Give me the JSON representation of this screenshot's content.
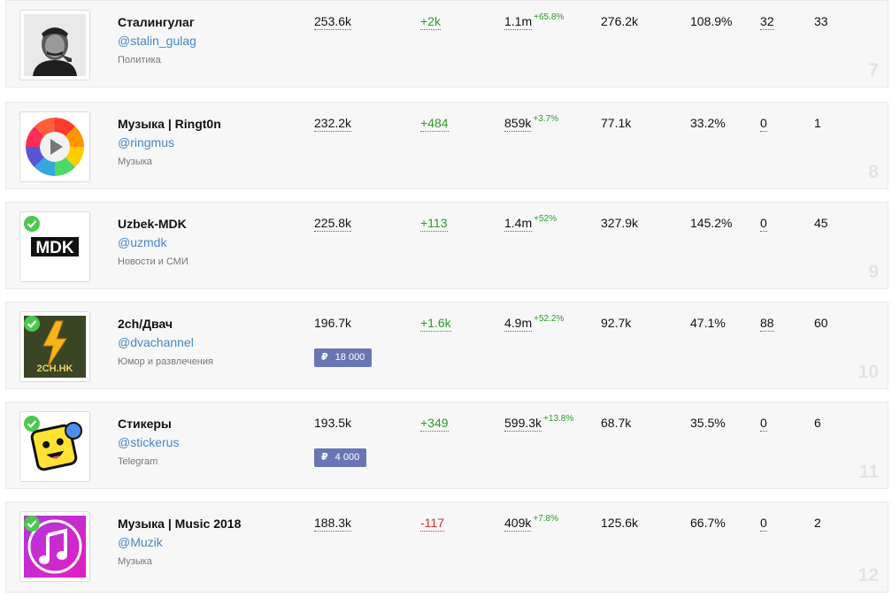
{
  "channels": [
    {
      "rank": "7",
      "name": "Сталингулаг",
      "handle": "@stalin_gulag",
      "category": "Политика",
      "subscribers": "253.6k",
      "growth": "+2k",
      "growth_negative": false,
      "reach": "1.1m",
      "reach_change": "+65.8%",
      "views": "276.2k",
      "er": "108.9%",
      "mentions": "32",
      "posts": "33",
      "price": null,
      "verified": false,
      "avatar": "portrait"
    },
    {
      "rank": "8",
      "name": "Музыка | Ringt0n",
      "handle": "@ringmus",
      "category": "Музыка",
      "subscribers": "232.2k",
      "growth": "+484",
      "growth_negative": false,
      "reach": "859k",
      "reach_change": "+3.7%",
      "views": "77.1k",
      "er": "33.2%",
      "mentions": "0",
      "posts": "1",
      "price": null,
      "verified": false,
      "avatar": "play-gear"
    },
    {
      "rank": "9",
      "name": "Uzbek-MDK",
      "handle": "@uzmdk",
      "category": "Новости и СМИ",
      "subscribers": "225.8k",
      "growth": "+113",
      "growth_negative": false,
      "reach": "1.4m",
      "reach_change": "+52%",
      "views": "327.9k",
      "er": "145.2%",
      "mentions": "0",
      "posts": "45",
      "price": null,
      "verified": true,
      "avatar": "mdk",
      "avatar_text": "MDK"
    },
    {
      "rank": "10",
      "name": "2ch/Двач",
      "handle": "@dvachannel",
      "category": "Юмор и развлечения",
      "subscribers": "196.7k",
      "growth": "+1.6k",
      "growth_negative": false,
      "reach": "4.9m",
      "reach_change": "+52.2%",
      "views": "92.7k",
      "er": "47.1%",
      "mentions": "88",
      "posts": "60",
      "price": {
        "currency": "₽",
        "amount": "18 000"
      },
      "verified": true,
      "avatar": "2ch",
      "avatar_text": "2CH.HK"
    },
    {
      "rank": "11",
      "name": "Стикеры",
      "handle": "@stickerus",
      "category": "Telegram",
      "subscribers": "193.5k",
      "growth": "+349",
      "growth_negative": false,
      "reach": "599.3k",
      "reach_change": "+13.8%",
      "views": "68.7k",
      "er": "35.5%",
      "mentions": "0",
      "posts": "6",
      "price": {
        "currency": "₽",
        "amount": "4 000"
      },
      "verified": true,
      "avatar": "sticker"
    },
    {
      "rank": "12",
      "name": "Музыка | Music 2018",
      "handle": "@Muzik",
      "category": "Музыка",
      "subscribers": "188.3k",
      "growth": "-117",
      "growth_negative": true,
      "reach": "409k",
      "reach_change": "+7.8%",
      "views": "125.6k",
      "er": "66.7%",
      "mentions": "0",
      "posts": "2",
      "price": null,
      "verified": true,
      "avatar": "music-note"
    }
  ],
  "colors": {
    "link": "#4a86c5",
    "positive": "#2e9a2e",
    "negative": "#d3302f",
    "price_badge": "#6a76b3",
    "verified": "#4cc94c"
  }
}
